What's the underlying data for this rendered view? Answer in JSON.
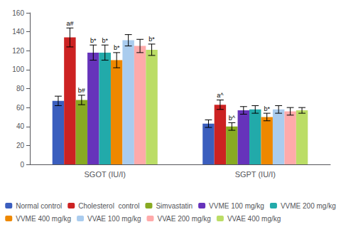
{
  "chart_data": {
    "type": "bar",
    "categories": [
      "SGOT (IU/I)",
      "SGPT (IU/I)"
    ],
    "series": [
      {
        "name": "Normal control",
        "color": "#3B5EBE",
        "values": [
          67,
          43
        ],
        "errors": [
          5,
          4
        ]
      },
      {
        "name": "Cholesterol  control",
        "color": "#CC2222",
        "values": [
          134,
          63
        ],
        "errors": [
          10,
          5
        ]
      },
      {
        "name": "Simvastatin",
        "color": "#88AA22",
        "values": [
          68,
          40
        ],
        "errors": [
          5,
          4
        ]
      },
      {
        "name": "VVME 100 mg/kg",
        "color": "#6633BB",
        "values": [
          118,
          57
        ],
        "errors": [
          8,
          4
        ]
      },
      {
        "name": "VVME 200 mg/kg",
        "color": "#22AAAA",
        "values": [
          118,
          58
        ],
        "errors": [
          8,
          4
        ]
      },
      {
        "name": "VVME 400 mg/kg",
        "color": "#EE8800",
        "values": [
          110,
          50
        ],
        "errors": [
          8,
          4
        ]
      },
      {
        "name": "VVAE 100 mg/kg",
        "color": "#AACCEE",
        "values": [
          131,
          58
        ],
        "errors": [
          6,
          4
        ]
      },
      {
        "name": "VVAE 200 mg/kg",
        "color": "#FFAAAA",
        "values": [
          125,
          56
        ],
        "errors": [
          7,
          4
        ]
      },
      {
        "name": "VVAE 400 mg/kg",
        "color": "#BBDD66",
        "values": [
          121,
          57
        ],
        "errors": [
          6,
          3
        ]
      }
    ],
    "annotations": [
      {
        "series": "Cholesterol  control",
        "category": "SGOT (IU/I)",
        "text": "a#"
      },
      {
        "series": "Simvastatin",
        "category": "SGOT (IU/I)",
        "text": "b#"
      },
      {
        "series": "VVME 100 mg/kg",
        "category": "SGOT (IU/I)",
        "text": "b*"
      },
      {
        "series": "VVME 200 mg/kg",
        "category": "SGOT (IU/I)",
        "text": "b*"
      },
      {
        "series": "VVME 400 mg/kg",
        "category": "SGOT (IU/I)",
        "text": "b*"
      },
      {
        "series": "VVAE 400 mg/kg",
        "category": "SGOT (IU/I)",
        "text": "b*"
      },
      {
        "series": "Cholesterol  control",
        "category": "SGPT (IU/I)",
        "text": "a^"
      },
      {
        "series": "Simvastatin",
        "category": "SGPT (IU/I)",
        "text": "b^"
      },
      {
        "series": "VVME 400 mg/kg",
        "category": "SGPT (IU/I)",
        "text": "b*"
      }
    ],
    "ylim": [
      0,
      160
    ],
    "yticks": [
      0,
      20,
      40,
      60,
      80,
      100,
      120,
      140,
      160
    ],
    "grid": false,
    "legend": "bottom"
  }
}
